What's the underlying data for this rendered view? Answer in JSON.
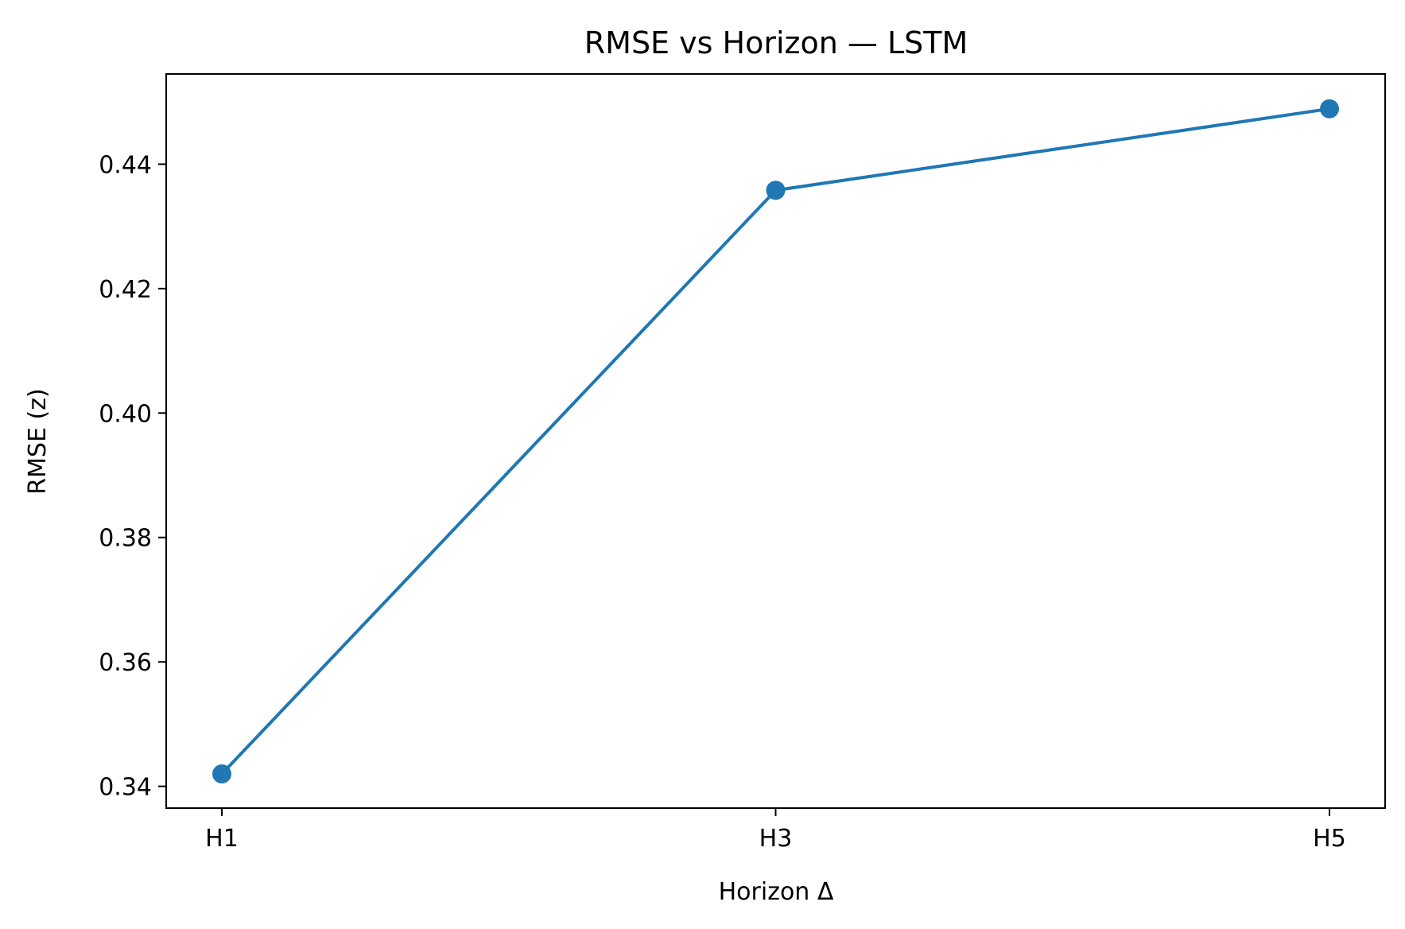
{
  "chart_data": {
    "type": "line",
    "title": "RMSE vs Horizon — LSTM",
    "xlabel": "Horizon Δ",
    "ylabel": "RMSE (z)",
    "categories": [
      "H1",
      "H3",
      "H5"
    ],
    "series": [
      {
        "values": [
          0.342,
          0.4358,
          0.4489
        ],
        "color": "#1f77b4",
        "marker": "circle"
      }
    ],
    "ylim": [
      0.3365,
      0.4545
    ],
    "yticks": [
      0.34,
      0.36,
      0.38,
      0.4,
      0.42,
      0.44
    ],
    "ytick_labels": [
      "0.34",
      "0.36",
      "0.38",
      "0.40",
      "0.42",
      "0.44"
    ],
    "grid": false,
    "legend": "none"
  }
}
